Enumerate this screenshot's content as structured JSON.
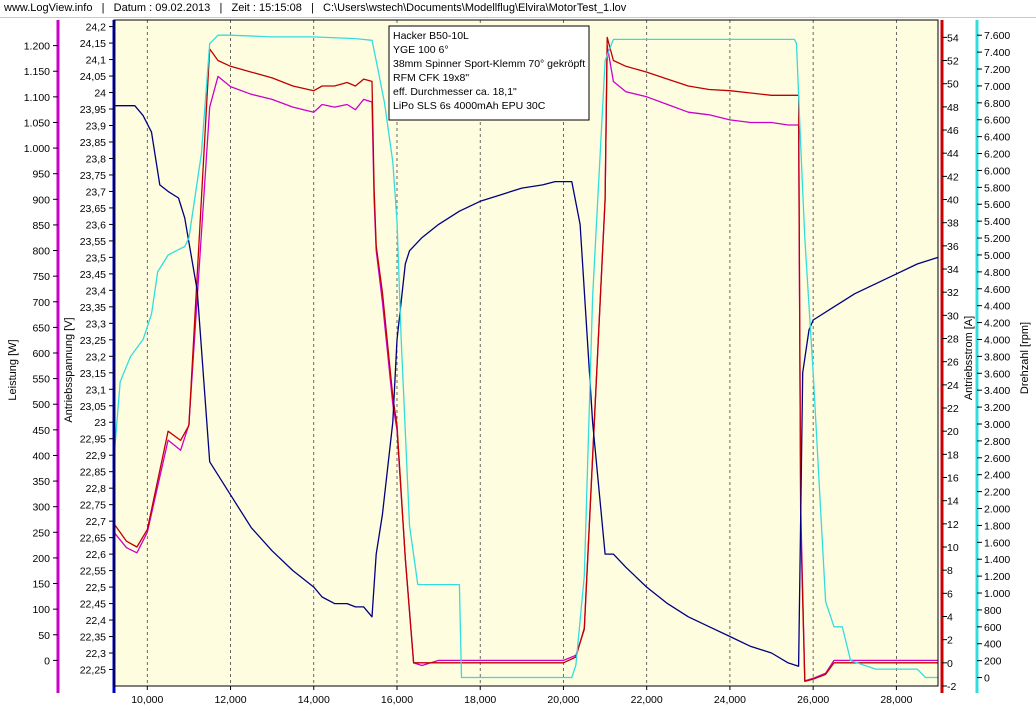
{
  "header": {
    "site": "www.LogView.info",
    "date": "Datum : 09.02.2013",
    "time": "Zeit : 15:15:08",
    "file": "C:\\Users\\wstech\\Documents\\Modellflug\\Elvira\\MotorTest_1.lov"
  },
  "colors": {
    "plot_background": "#fffde0",
    "leistung": "#000080",
    "spannung": "#cc00cc",
    "strom": "#c00000",
    "drehzahl": "#33dddd",
    "grid": "#555555"
  },
  "legend": [
    "Hacker B50-10L",
    "YGE 100 6°",
    "38mm Spinner Sport-Klemm 70° gekröpft",
    "RFM CFK 19x8\"",
    "eff. Durchmesser ca. 18,1\"",
    "LiPo SLS 6s 4000mAh EPU 30C"
  ],
  "chart_data": {
    "type": "line",
    "x_axis": {
      "range": [
        9200,
        29000
      ],
      "ticks": [
        10000,
        12000,
        14000,
        16000,
        18000,
        20000,
        22000,
        24000,
        26000,
        28000
      ],
      "tick_labels": [
        "10,000",
        "12,000",
        "14,000",
        "16,000",
        "18,000",
        "20,000",
        "22,000",
        "24,000",
        "26,000",
        "28,000"
      ],
      "grid": true
    },
    "y_axes": [
      {
        "id": "leistung",
        "label": "Leistung [W]",
        "range": [
          -50,
          1250
        ],
        "tick_labels": [
          "0",
          "50",
          "100",
          "150",
          "200",
          "250",
          "300",
          "350",
          "400",
          "450",
          "500",
          "550",
          "600",
          "650",
          "700",
          "750",
          "800",
          "850",
          "900",
          "950",
          "1.000",
          "1.050",
          "1.100",
          "1.150",
          "1.200"
        ]
      },
      {
        "id": "spannung",
        "label": "Antriebsspannung [V]",
        "range": [
          22.2,
          24.22
        ],
        "tick_labels": [
          "22,25",
          "22,3",
          "22,35",
          "22,4",
          "22,45",
          "22,5",
          "22,55",
          "22,6",
          "22,65",
          "22,7",
          "22,75",
          "22,8",
          "22,85",
          "22,9",
          "22,95",
          "23",
          "23,05",
          "23,1",
          "23,15",
          "23,2",
          "23,25",
          "23,3",
          "23,35",
          "23,4",
          "23,45",
          "23,5",
          "23,55",
          "23,6",
          "23,65",
          "23,7",
          "23,75",
          "23,8",
          "23,85",
          "23,9",
          "23,95",
          "24",
          "24,05",
          "24,1",
          "24,15",
          "24,2"
        ]
      },
      {
        "id": "strom",
        "label": "Antriebsstrom [A]",
        "range": [
          -2,
          55.5
        ],
        "tick_labels": [
          "-2",
          "0",
          "2",
          "4",
          "6",
          "8",
          "10",
          "12",
          "14",
          "16",
          "18",
          "20",
          "22",
          "24",
          "26",
          "28",
          "30",
          "32",
          "34",
          "36",
          "38",
          "40",
          "42",
          "44",
          "46",
          "48",
          "50",
          "52",
          "54"
        ]
      },
      {
        "id": "drehzahl",
        "label": "Drehzahl [rpm]",
        "range": [
          -100,
          7780
        ],
        "tick_labels": [
          "0",
          "200",
          "400",
          "600",
          "800",
          "1.000",
          "1.200",
          "1.400",
          "1.600",
          "1.800",
          "2.000",
          "2.200",
          "2.400",
          "2.600",
          "2.800",
          "3.000",
          "3.200",
          "3.400",
          "3.600",
          "3.800",
          "4.000",
          "4.200",
          "4.400",
          "4.600",
          "4.800",
          "5.000",
          "5.200",
          "5.400",
          "5.600",
          "5.800",
          "6.000",
          "6.200",
          "6.400",
          "6.600",
          "6.800",
          "7.000",
          "7.200",
          "7.400",
          "7.600"
        ]
      }
    ],
    "series": [
      {
        "name": "Leistung",
        "axis": "leistung",
        "color": "#cc00cc",
        "x": [
          9200,
          9500,
          9750,
          10000,
          10500,
          10800,
          11000,
          11500,
          11700,
          12000,
          12500,
          13000,
          13500,
          14000,
          14200,
          14500,
          14800,
          15000,
          15200,
          15400,
          15450,
          15500,
          15650,
          15900,
          16000,
          16200,
          16400,
          16600,
          17000,
          18000,
          19000,
          19800,
          20000,
          20300,
          20500,
          21000,
          21050,
          21200,
          21500,
          22000,
          22500,
          23000,
          23500,
          24000,
          24500,
          25000,
          25400,
          25650,
          25700,
          25800,
          26000,
          26300,
          26500,
          27000,
          28000,
          29000
        ],
        "y": [
          250,
          220,
          210,
          250,
          430,
          410,
          460,
          1080,
          1140,
          1120,
          1105,
          1095,
          1080,
          1070,
          1085,
          1080,
          1085,
          1075,
          1095,
          1090,
          900,
          800,
          700,
          500,
          450,
          200,
          -5,
          -10,
          0,
          0,
          0,
          0,
          0,
          10,
          60,
          900,
          1200,
          1130,
          1110,
          1100,
          1085,
          1070,
          1065,
          1055,
          1050,
          1050,
          1045,
          1045,
          300,
          -40,
          -35,
          -25,
          0,
          0,
          0,
          0
        ]
      },
      {
        "name": "Antriebsstrom",
        "axis": "strom",
        "color": "#c00000",
        "x": [
          9200,
          9500,
          9750,
          10000,
          10500,
          10800,
          11000,
          11500,
          11700,
          12000,
          12500,
          13000,
          13500,
          14000,
          14200,
          14500,
          14800,
          15000,
          15200,
          15400,
          15450,
          15500,
          15650,
          15900,
          16000,
          16200,
          16400,
          16600,
          17000,
          18000,
          19000,
          19800,
          20000,
          20300,
          20500,
          21000,
          21050,
          21200,
          21500,
          22000,
          22500,
          23000,
          23500,
          24000,
          24500,
          25000,
          25400,
          25650,
          25700,
          25800,
          26000,
          26300,
          26500,
          27000,
          28000,
          29000
        ],
        "y": [
          12,
          10.5,
          10,
          11.5,
          20,
          19.2,
          20.5,
          53,
          52,
          51.5,
          51,
          50.5,
          49.8,
          49.4,
          49.8,
          49.8,
          50.1,
          49.8,
          50.4,
          50.2,
          41,
          36,
          32,
          23,
          20.5,
          9,
          0,
          0,
          0,
          0,
          0,
          0,
          0,
          0.5,
          3,
          40,
          54,
          52,
          51.5,
          51,
          50.4,
          49.8,
          49.5,
          49.4,
          49.2,
          49,
          49,
          49,
          12,
          -1.6,
          -1.4,
          -1,
          0,
          0,
          0,
          0
        ]
      },
      {
        "name": "Antriebsspannung",
        "axis": "spannung",
        "color": "#000080",
        "x": [
          9200,
          9700,
          9900,
          10100,
          10300,
          10500,
          10750,
          10900,
          11200,
          11500,
          12000,
          12500,
          13000,
          13500,
          14000,
          14200,
          14500,
          14800,
          15000,
          15200,
          15400,
          15500,
          15650,
          15900,
          16000,
          16200,
          16300,
          16600,
          17000,
          17500,
          18000,
          18500,
          19000,
          19500,
          19800,
          20000,
          20200,
          20400,
          20700,
          21000,
          21200,
          21500,
          22000,
          22500,
          23000,
          23500,
          24000,
          24500,
          25000,
          25400,
          25650,
          25750,
          25900,
          26000,
          26500,
          27000,
          27500,
          28000,
          28500,
          29000
        ],
        "y": [
          23.96,
          23.96,
          23.93,
          23.88,
          23.72,
          23.7,
          23.68,
          23.62,
          23.4,
          22.88,
          22.78,
          22.68,
          22.61,
          22.55,
          22.5,
          22.47,
          22.45,
          22.45,
          22.44,
          22.44,
          22.41,
          22.6,
          22.72,
          23.0,
          23.25,
          23.48,
          23.52,
          23.56,
          23.6,
          23.64,
          23.67,
          23.69,
          23.71,
          23.72,
          23.73,
          23.73,
          23.73,
          23.6,
          23.0,
          22.6,
          22.6,
          22.56,
          22.5,
          22.45,
          22.41,
          22.38,
          22.35,
          22.32,
          22.3,
          22.27,
          22.26,
          23.15,
          23.28,
          23.31,
          23.35,
          23.39,
          23.42,
          23.45,
          23.48,
          23.5
        ]
      },
      {
        "name": "Drehzahl",
        "axis": "drehzahl",
        "color": "#33dddd",
        "x": [
          9200,
          9350,
          9600,
          9900,
          10100,
          10250,
          10500,
          10700,
          10900,
          11000,
          11300,
          11500,
          11700,
          12000,
          13000,
          14000,
          15000,
          15400,
          15500,
          15700,
          15900,
          16000,
          16100,
          16300,
          16500,
          16700,
          17000,
          17500,
          17550,
          18000,
          19000,
          20000,
          20200,
          20300,
          20500,
          20700,
          21000,
          21200,
          22000,
          23000,
          24000,
          25000,
          25550,
          25600,
          25700,
          25800,
          26000,
          26300,
          26500,
          26700,
          26900,
          27500,
          28000,
          28500,
          28700,
          29000
        ],
        "y": [
          2600,
          3500,
          3800,
          4000,
          4300,
          4800,
          5000,
          5050,
          5100,
          5200,
          6200,
          7500,
          7600,
          7600,
          7580,
          7580,
          7560,
          7540,
          7300,
          6800,
          6100,
          5400,
          4000,
          1800,
          1100,
          1100,
          1100,
          1100,
          0,
          0,
          0,
          0,
          0,
          150,
          1200,
          4500,
          7300,
          7550,
          7550,
          7550,
          7550,
          7550,
          7550,
          7500,
          6300,
          5200,
          3600,
          900,
          600,
          600,
          200,
          100,
          100,
          100,
          0,
          0
        ]
      }
    ]
  }
}
